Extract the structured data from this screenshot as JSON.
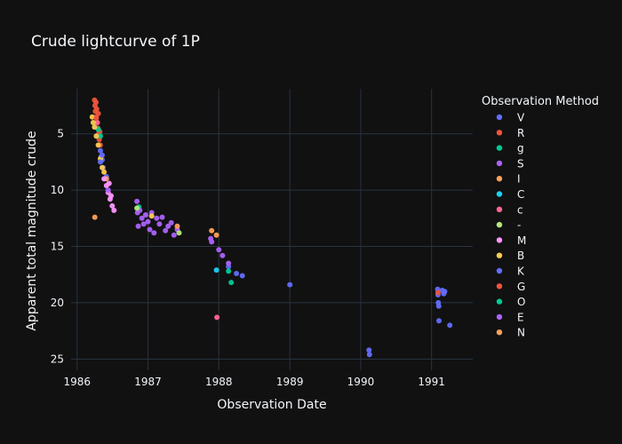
{
  "chart_data": {
    "type": "scatter",
    "title": "Crude lightcurve of 1P",
    "xlabel": "Observation Date",
    "ylabel": "Apparent total magnitude crude",
    "x_axis": {
      "type": "date",
      "range": [
        "1985-12-01",
        "1991-08-01"
      ],
      "ticks": [
        "1986",
        "1987",
        "1988",
        "1989",
        "1990",
        "1991"
      ]
    },
    "y_axis": {
      "reversed": true,
      "range": [
        1.0,
        26.0
      ],
      "ticks": [
        5,
        10,
        15,
        20,
        25
      ]
    },
    "grid": true,
    "legend": {
      "title": "Observation Method",
      "placement": "right"
    },
    "series": [
      {
        "name": "V",
        "color": "#636efa",
        "points": [
          [
            "1986-05-01",
            6.5
          ],
          [
            "1986-05-05",
            7.0
          ],
          [
            "1986-05-10",
            7.3
          ],
          [
            "1986-05-15",
            8.0
          ],
          [
            "1986-06-01",
            8.8
          ],
          [
            "1988-02-20",
            16.8
          ],
          [
            "1988-04-01",
            17.4
          ],
          [
            "1988-05-01",
            17.6
          ],
          [
            "1989-01-01",
            18.4
          ],
          [
            "1990-02-13",
            24.2
          ],
          [
            "1990-02-15",
            24.6
          ],
          [
            "1991-02-01",
            18.8
          ],
          [
            "1991-02-03",
            19.3
          ],
          [
            "1991-02-05",
            20.0
          ],
          [
            "1991-02-07",
            20.3
          ],
          [
            "1991-02-08",
            21.6
          ],
          [
            "1991-02-25",
            18.9
          ],
          [
            "1991-03-05",
            19.2
          ],
          [
            "1991-03-10",
            19.0
          ],
          [
            "1991-04-05",
            22.0
          ]
        ]
      },
      {
        "name": "R",
        "color": "#ef553b",
        "points": [
          [
            "1986-04-01",
            2.0
          ],
          [
            "1986-04-03",
            2.5
          ],
          [
            "1986-04-05",
            3.0
          ],
          [
            "1986-04-08",
            2.2
          ],
          [
            "1986-04-10",
            3.5
          ],
          [
            "1986-04-12",
            2.8
          ],
          [
            "1986-04-15",
            4.0
          ],
          [
            "1986-04-18",
            4.5
          ],
          [
            "1986-04-20",
            3.2
          ],
          [
            "1986-04-22",
            5.0
          ],
          [
            "1986-04-25",
            5.5
          ],
          [
            "1986-04-28",
            4.8
          ],
          [
            "1986-04-30",
            6.0
          ]
        ]
      },
      {
        "name": "g",
        "color": "#00cc96",
        "points": [
          [
            "1986-04-20",
            4.6
          ],
          [
            "1986-05-01",
            5.2
          ],
          [
            "1986-11-15",
            11.5
          ]
        ]
      },
      {
        "name": "S",
        "color": "#ab63fa",
        "points": [
          [
            "1986-11-05",
            11.0
          ],
          [
            "1986-11-08",
            12.0
          ],
          [
            "1986-11-12",
            13.2
          ],
          [
            "1986-11-20",
            11.8
          ],
          [
            "1986-12-01",
            12.5
          ],
          [
            "1986-12-10",
            13.0
          ],
          [
            "1986-12-20",
            12.2
          ],
          [
            "1987-01-01",
            12.8
          ],
          [
            "1987-01-10",
            13.5
          ],
          [
            "1987-01-20",
            12.0
          ],
          [
            "1987-02-01",
            13.8
          ],
          [
            "1987-02-15",
            12.5
          ],
          [
            "1987-03-01",
            13.0
          ],
          [
            "1987-03-15",
            12.4
          ],
          [
            "1987-04-01",
            13.6
          ],
          [
            "1987-04-15",
            13.2
          ],
          [
            "1987-05-01",
            12.9
          ],
          [
            "1987-05-15",
            14.0
          ],
          [
            "1987-06-01",
            13.5
          ],
          [
            "1987-11-20",
            14.3
          ],
          [
            "1987-11-25",
            14.6
          ],
          [
            "1988-01-01",
            15.3
          ],
          [
            "1988-01-20",
            15.8
          ],
          [
            "1988-02-20",
            16.5
          ]
        ]
      },
      {
        "name": "I",
        "color": "#ffa15a",
        "points": [
          [
            "1986-04-02",
            12.4
          ],
          [
            "1986-06-01",
            9.0
          ]
        ]
      },
      {
        "name": "C",
        "color": "#19d3f3",
        "points": [
          [
            "1987-12-20",
            17.1
          ]
        ]
      },
      {
        "name": "c",
        "color": "#ff6692",
        "points": [
          [
            "1986-04-15",
            4.0
          ],
          [
            "1987-12-22",
            21.3
          ]
        ]
      },
      {
        "name": "-",
        "color": "#b6e880",
        "points": [
          [
            "1986-11-05",
            11.6
          ],
          [
            "1987-06-10",
            13.8
          ]
        ]
      },
      {
        "name": "M",
        "color": "#ff97ff",
        "points": [
          [
            "1986-05-20",
            9.0
          ],
          [
            "1986-06-01",
            9.6
          ],
          [
            "1986-06-10",
            10.2
          ],
          [
            "1986-06-20",
            10.8
          ],
          [
            "1986-07-01",
            11.4
          ],
          [
            "1986-07-10",
            11.8
          ],
          [
            "1986-06-15",
            9.4
          ],
          [
            "1986-06-25",
            10.5
          ]
        ]
      },
      {
        "name": "B",
        "color": "#fecb52",
        "points": [
          [
            "1986-03-20",
            3.5
          ],
          [
            "1986-03-25",
            4.0
          ],
          [
            "1986-04-01",
            4.4
          ],
          [
            "1986-04-10",
            5.2
          ],
          [
            "1986-04-20",
            6.0
          ],
          [
            "1986-05-01",
            7.2
          ],
          [
            "1986-05-10",
            8.0
          ],
          [
            "1986-05-20",
            8.4
          ],
          [
            "1987-01-20",
            12.3
          ]
        ]
      },
      {
        "name": "K",
        "color": "#636efa",
        "points": [
          [
            "1986-05-01",
            7.5
          ],
          [
            "1986-05-10",
            6.9
          ]
        ]
      },
      {
        "name": "G",
        "color": "#ef553b",
        "points": [
          [
            "1986-04-10",
            3.6
          ],
          [
            "1991-02-03",
            19.1
          ]
        ]
      },
      {
        "name": "O",
        "color": "#00cc96",
        "points": [
          [
            "1988-02-20",
            17.2
          ],
          [
            "1988-03-05",
            18.2
          ]
        ]
      },
      {
        "name": "E",
        "color": "#ab63fa",
        "points": [
          [
            "1986-06-10",
            10.0
          ]
        ]
      },
      {
        "name": "N",
        "color": "#ffa15a",
        "points": [
          [
            "1987-11-25",
            13.6
          ],
          [
            "1987-12-20",
            14.0
          ],
          [
            "1987-06-01",
            13.2
          ]
        ]
      }
    ]
  }
}
